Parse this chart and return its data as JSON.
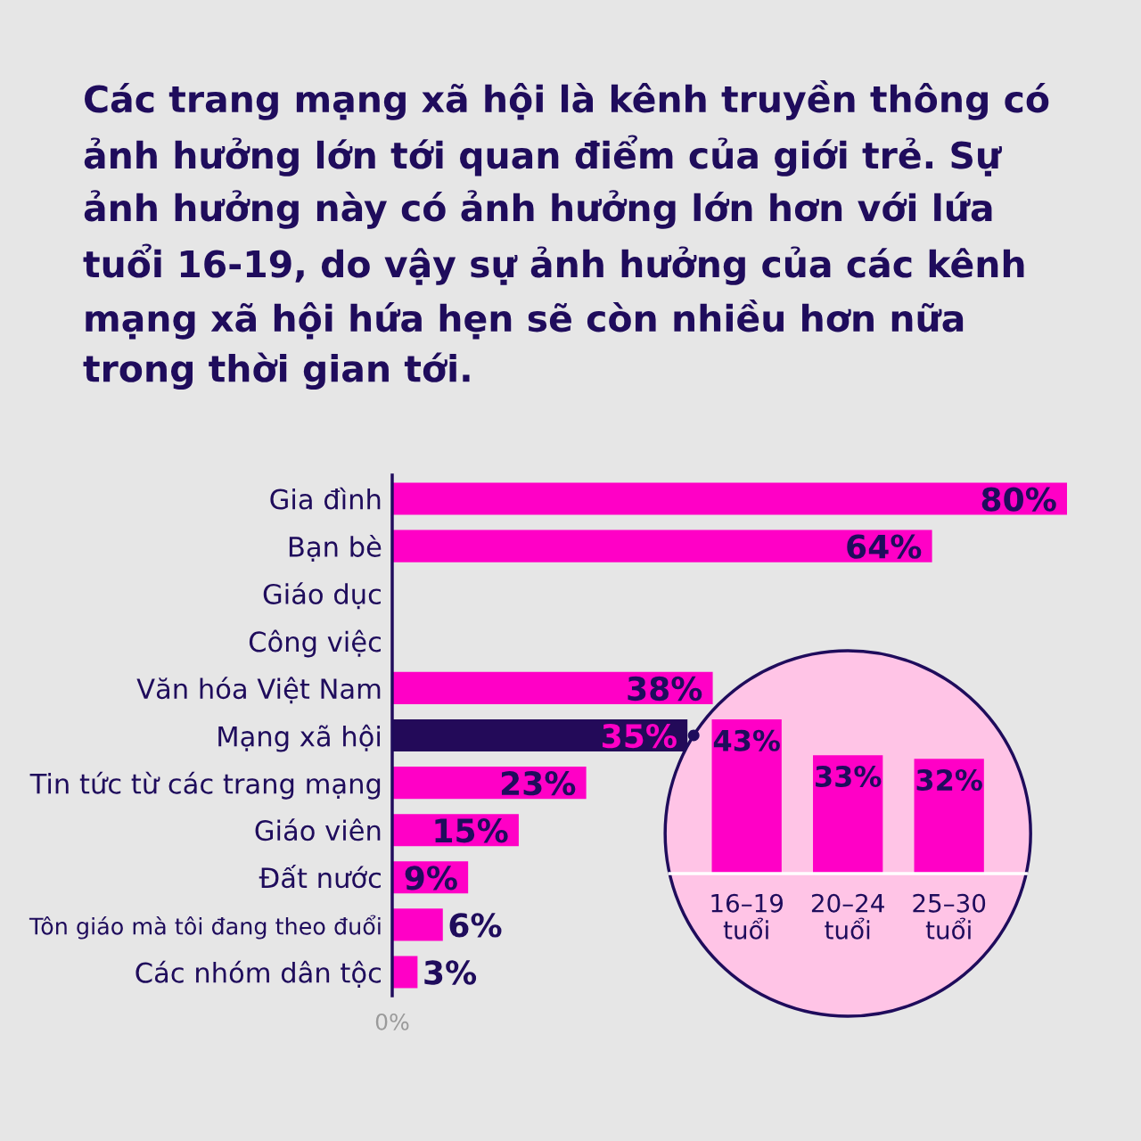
{
  "chart_data": [
    {
      "type": "bar",
      "orientation": "horizontal",
      "title": "Các trang mạng xã hội là kênh truyền thông có ảnh hưởng lớn tới quan điểm của giới trẻ. Sự ảnh hưởng này có ảnh hưởng lớn hơn với lứa tuổi 16-19, do vậy sự ảnh hưởng của các kênh mạng xã hội hứa hẹn sẽ còn nhiều hơn nữa trong thời gian tới.",
      "categories": [
        "Gia đình",
        "Bạn bè",
        "Giáo dục",
        "Công việc",
        "Văn hóa Việt Nam",
        "Mạng xã hội",
        "Tin tức từ các trang mạng",
        "Giáo viên",
        "Đất nước",
        "Tôn giáo mà tôi đang theo đuổi",
        "Các nhóm dân tộc"
      ],
      "values": [
        80,
        64,
        null,
        null,
        38,
        35,
        23,
        15,
        9,
        6,
        3
      ],
      "value_labels": [
        "80%",
        "64%",
        null,
        null,
        "38%",
        "35%",
        "23%",
        "15%",
        "9%",
        "6%",
        "3%"
      ],
      "colors": [
        "#ff00c6",
        "#ff00c6",
        "#ff00c6",
        "#ff00c6",
        "#ff00c6",
        "#230a59",
        "#ff00c6",
        "#ff00c6",
        "#ff00c6",
        "#ff00c6",
        "#ff00c6"
      ],
      "xlim": [
        0,
        80
      ],
      "annotations": [
        "0%"
      ]
    },
    {
      "type": "bar",
      "categories": [
        "16–19 tuổi",
        "20–24 tuổi",
        "25–30 tuổi"
      ],
      "values": [
        43,
        33,
        32
      ],
      "value_labels": [
        "43%",
        "33%",
        "32%"
      ],
      "colors": [
        "#ff00c6",
        "#ff00c6",
        "#ff00c6"
      ],
      "tick_labels": "x"
    }
  ]
}
